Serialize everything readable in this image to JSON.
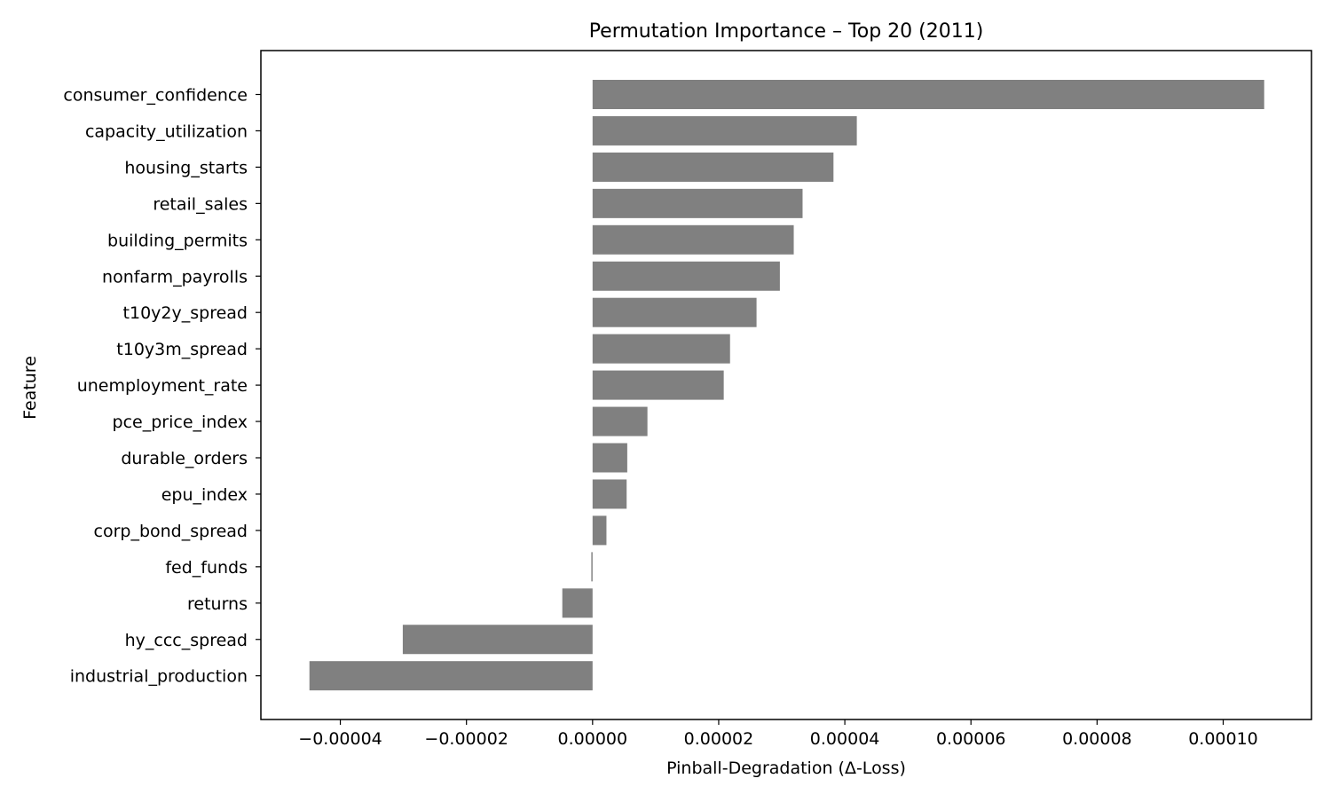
{
  "chart_data": {
    "type": "bar",
    "orientation": "horizontal",
    "title": "Permutation Importance – Top 20 (2011)",
    "xlabel": "Pinball-Degradation (Δ-Loss)",
    "ylabel": "Feature",
    "categories": [
      "consumer_confidence",
      "capacity_utilization",
      "housing_starts",
      "retail_sales",
      "building_permits",
      "nonfarm_payrolls",
      "t10y2y_spread",
      "t10y3m_spread",
      "unemployment_rate",
      "pce_price_index",
      "durable_orders",
      "epu_index",
      "corp_bond_spread",
      "fed_funds",
      "returns",
      "hy_ccc_spread",
      "industrial_production"
    ],
    "values": [
      0.0001065,
      4.19e-05,
      3.82e-05,
      3.33e-05,
      3.19e-05,
      2.97e-05,
      2.6e-05,
      2.18e-05,
      2.08e-05,
      8.7e-06,
      5.5e-06,
      5.4e-06,
      2.2e-06,
      -2e-07,
      -4.8e-06,
      -3.01e-05,
      -4.49e-05
    ],
    "xticks": [
      -4e-05,
      -2e-05,
      0.0,
      2e-05,
      4e-05,
      6e-05,
      8e-05,
      0.0001
    ],
    "xtick_labels": [
      "−0.00004",
      "−0.00002",
      "0.00000",
      "0.00002",
      "0.00004",
      "0.00006",
      "0.00008",
      "0.00010"
    ],
    "xlim": [
      -5.26e-05,
      0.000114
    ],
    "bar_color": "#808080",
    "grid": false,
    "legend": false
  }
}
